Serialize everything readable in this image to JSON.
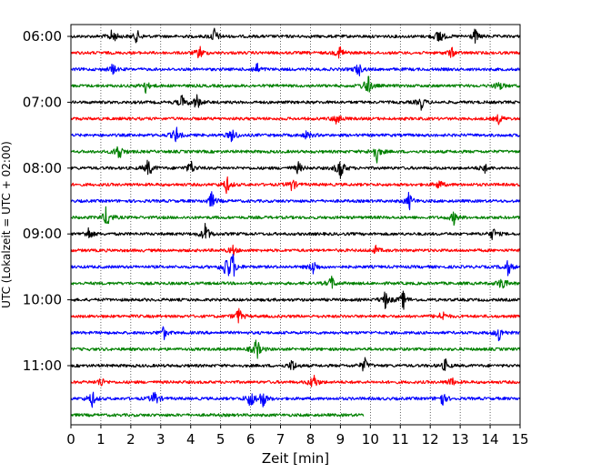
{
  "chart_data": {
    "type": "line",
    "title": "",
    "xlabel": "Zeit  [min]",
    "ylabel": "UTC (Lokalzeit = UTC + 02:00)",
    "xlim": [
      0,
      15
    ],
    "x_ticks": [
      "0",
      "1",
      "2",
      "3",
      "4",
      "5",
      "6",
      "7",
      "8",
      "9",
      "10",
      "11",
      "12",
      "13",
      "14",
      "15"
    ],
    "y_tick_labels": [
      "06:00",
      "07:00",
      "08:00",
      "09:00",
      "10:00",
      "11:00"
    ],
    "grid": "vertical dotted at each minute",
    "trace_interval_min": 15,
    "start_time": "06:00",
    "trace_colors": [
      "#000000",
      "#ff0000",
      "#0000ff",
      "#008000"
    ],
    "traces": [
      {
        "start": "06:00",
        "color": "#000000",
        "end_min": 15,
        "events": [
          [
            1.4,
            1.0
          ],
          [
            2.2,
            0.7
          ],
          [
            4.8,
            1.0
          ],
          [
            12.3,
            1.2
          ],
          [
            13.5,
            0.8
          ]
        ]
      },
      {
        "start": "06:15",
        "color": "#ff0000",
        "end_min": 15,
        "events": [
          [
            4.3,
            0.8
          ],
          [
            9.0,
            0.9
          ],
          [
            12.7,
            0.6
          ]
        ]
      },
      {
        "start": "06:30",
        "color": "#0000ff",
        "end_min": 15,
        "events": [
          [
            1.4,
            0.6
          ],
          [
            6.2,
            0.7
          ],
          [
            9.6,
            0.8
          ]
        ]
      },
      {
        "start": "06:45",
        "color": "#008000",
        "end_min": 15,
        "events": [
          [
            2.5,
            0.8
          ],
          [
            9.9,
            1.5
          ],
          [
            14.3,
            0.7
          ]
        ]
      },
      {
        "start": "07:00",
        "color": "#000000",
        "end_min": 15,
        "events": [
          [
            3.7,
            0.8
          ],
          [
            4.2,
            1.0
          ],
          [
            11.7,
            0.8
          ]
        ]
      },
      {
        "start": "07:15",
        "color": "#ff0000",
        "end_min": 15,
        "events": [
          [
            8.9,
            0.9
          ],
          [
            14.3,
            0.6
          ]
        ]
      },
      {
        "start": "07:30",
        "color": "#0000ff",
        "end_min": 15,
        "events": [
          [
            3.5,
            1.0
          ],
          [
            5.4,
            1.0
          ],
          [
            7.9,
            0.6
          ]
        ]
      },
      {
        "start": "07:45",
        "color": "#008000",
        "end_min": 15,
        "events": [
          [
            1.6,
            1.2
          ],
          [
            10.2,
            1.3
          ]
        ]
      },
      {
        "start": "08:00",
        "color": "#000000",
        "end_min": 15,
        "events": [
          [
            2.6,
            1.2
          ],
          [
            4.0,
            0.9
          ],
          [
            7.6,
            0.7
          ],
          [
            9.0,
            1.6
          ],
          [
            13.8,
            0.6
          ]
        ]
      },
      {
        "start": "08:15",
        "color": "#ff0000",
        "end_min": 15,
        "events": [
          [
            5.2,
            1.0
          ],
          [
            7.4,
            0.8
          ],
          [
            12.3,
            0.6
          ]
        ]
      },
      {
        "start": "08:30",
        "color": "#0000ff",
        "end_min": 15,
        "events": [
          [
            4.7,
            1.0
          ],
          [
            11.3,
            1.0
          ]
        ]
      },
      {
        "start": "08:45",
        "color": "#008000",
        "end_min": 15,
        "events": [
          [
            1.2,
            1.4
          ],
          [
            12.8,
            0.8
          ]
        ]
      },
      {
        "start": "09:00",
        "color": "#000000",
        "end_min": 15,
        "events": [
          [
            0.6,
            0.8
          ],
          [
            4.5,
            1.4
          ],
          [
            14.1,
            0.7
          ]
        ]
      },
      {
        "start": "09:15",
        "color": "#ff0000",
        "end_min": 15,
        "events": [
          [
            5.4,
            0.6
          ],
          [
            10.2,
            0.5
          ]
        ]
      },
      {
        "start": "09:30",
        "color": "#0000ff",
        "end_min": 15,
        "events": [
          [
            5.2,
            1.6
          ],
          [
            5.4,
            1.4
          ],
          [
            8.1,
            0.9
          ],
          [
            14.6,
            0.9
          ]
        ]
      },
      {
        "start": "09:45",
        "color": "#008000",
        "end_min": 15,
        "events": [
          [
            8.7,
            0.8
          ],
          [
            14.4,
            1.0
          ]
        ]
      },
      {
        "start": "10:00",
        "color": "#000000",
        "end_min": 15,
        "events": [
          [
            10.5,
            1.0
          ],
          [
            11.1,
            1.0
          ]
        ]
      },
      {
        "start": "10:15",
        "color": "#ff0000",
        "end_min": 15,
        "events": [
          [
            5.6,
            1.0
          ],
          [
            12.4,
            0.7
          ]
        ]
      },
      {
        "start": "10:30",
        "color": "#0000ff",
        "end_min": 15,
        "events": [
          [
            3.1,
            0.7
          ],
          [
            14.3,
            1.0
          ]
        ]
      },
      {
        "start": "10:45",
        "color": "#008000",
        "end_min": 15,
        "events": [
          [
            6.2,
            1.4
          ]
        ]
      },
      {
        "start": "11:00",
        "color": "#000000",
        "end_min": 15,
        "events": [
          [
            7.4,
            0.8
          ],
          [
            9.8,
            0.9
          ],
          [
            12.5,
            0.7
          ]
        ]
      },
      {
        "start": "11:15",
        "color": "#ff0000",
        "end_min": 15,
        "events": [
          [
            1.0,
            0.6
          ],
          [
            8.1,
            1.1
          ],
          [
            12.7,
            0.6
          ]
        ]
      },
      {
        "start": "11:30",
        "color": "#0000ff",
        "end_min": 15,
        "events": [
          [
            0.7,
            1.0
          ],
          [
            2.8,
            1.0
          ],
          [
            6.0,
            1.2
          ],
          [
            6.4,
            1.2
          ],
          [
            12.4,
            0.9
          ]
        ]
      },
      {
        "start": "11:45",
        "color": "#008000",
        "end_min": 9.8,
        "events": []
      }
    ]
  }
}
